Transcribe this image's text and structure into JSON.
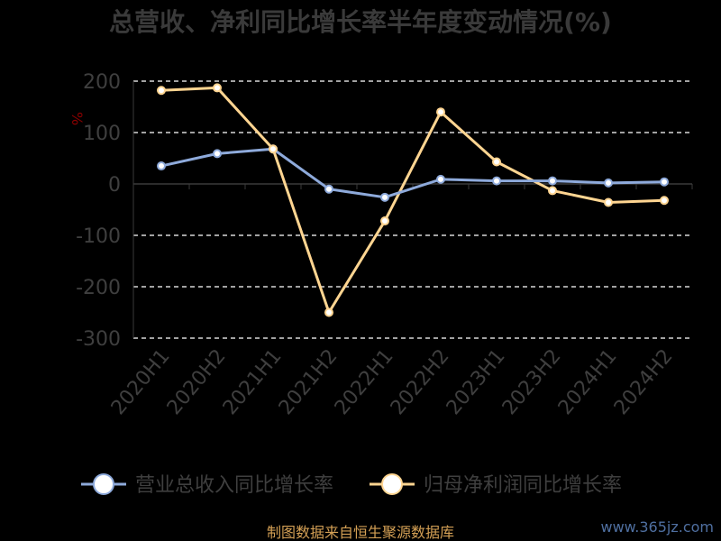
{
  "chart_data": {
    "type": "line",
    "title": "总营收、净利同比增长率半年度变动情况(%)",
    "unit": "%",
    "categories": [
      "2020H1",
      "2020H2",
      "2021H1",
      "2021H2",
      "2022H1",
      "2022H2",
      "2023H1",
      "2023H2",
      "2024H1",
      "2024H2"
    ],
    "ylim": [
      -300,
      200
    ],
    "yticks": [
      "200",
      "100",
      "0",
      "-100",
      "-200",
      "-300"
    ],
    "grid": true,
    "legend_position": "bottom",
    "series": [
      {
        "name": "营业总收入同比增长率",
        "color": "#8eaadb",
        "values": [
          35,
          59,
          68,
          -10,
          -26,
          9,
          6,
          6,
          2,
          4
        ]
      },
      {
        "name": "归母净利润同比增长率",
        "color": "#ffd591",
        "values": [
          182,
          187,
          68,
          -250,
          -72,
          140,
          43,
          -13,
          -36,
          -32
        ]
      }
    ]
  },
  "footer": {
    "source": "制图数据来自恒生聚源数据库",
    "watermark": "www.365jz.com"
  }
}
